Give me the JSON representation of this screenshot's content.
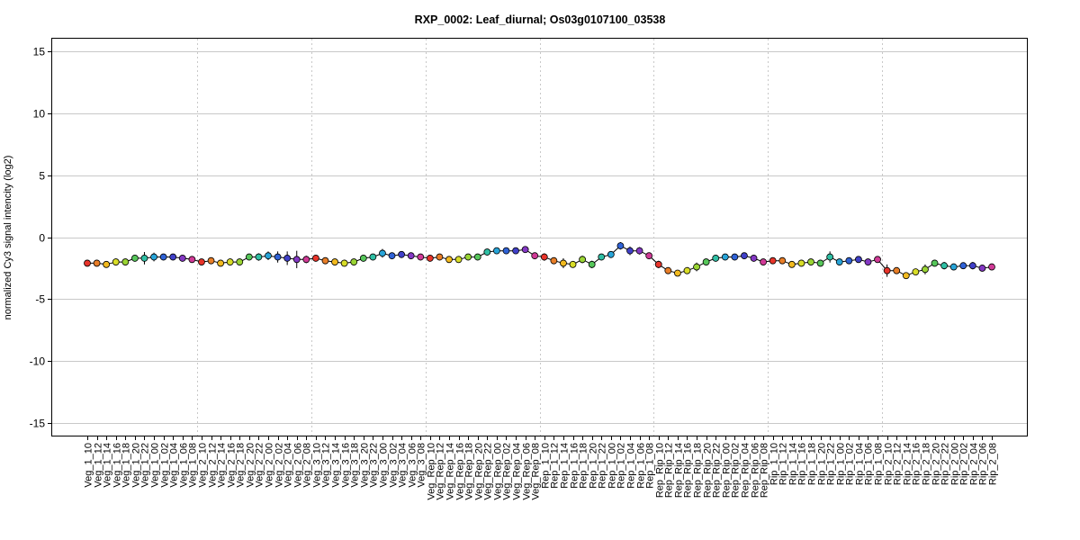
{
  "chart_data": {
    "type": "line",
    "title": "RXP_0002: Leaf_diurnal; Os03g0107100_03538",
    "xlabel": "",
    "ylabel": "normalized Cy3 signal intencity (log2)",
    "ylim": [
      -16,
      16
    ],
    "yticks": [
      15,
      10,
      5,
      0,
      -5,
      -10,
      -15
    ],
    "grid": true,
    "group_separators_after": [
      "Veg_1_08",
      "Veg_2_08",
      "Veg_3_08",
      "Veg_Rep_08",
      "Rep_1_08",
      "Rep_Rip_08",
      "Rip_1_08"
    ],
    "categories": [
      "Veg_1_10",
      "Veg_1_12",
      "Veg_1_14",
      "Veg_1_16",
      "Veg_1_18",
      "Veg_1_20",
      "Veg_1_22",
      "Veg_1_00",
      "Veg_1_02",
      "Veg_1_04",
      "Veg_1_06",
      "Veg_1_08",
      "Veg_2_10",
      "Veg_2_12",
      "Veg_2_14",
      "Veg_2_16",
      "Veg_2_18",
      "Veg_2_20",
      "Veg_2_22",
      "Veg_2_00",
      "Veg_2_02",
      "Veg_2_04",
      "Veg_2_06",
      "Veg_2_08",
      "Veg_3_10",
      "Veg_3_12",
      "Veg_3_14",
      "Veg_3_16",
      "Veg_3_18",
      "Veg_3_20",
      "Veg_3_22",
      "Veg_3_00",
      "Veg_3_02",
      "Veg_3_04",
      "Veg_3_06",
      "Veg_3_08",
      "Veg_Rep_10",
      "Veg_Rep_12",
      "Veg_Rep_14",
      "Veg_Rep_16",
      "Veg_Rep_18",
      "Veg_Rep_20",
      "Veg_Rep_22",
      "Veg_Rep_00",
      "Veg_Rep_02",
      "Veg_Rep_04",
      "Veg_Rep_06",
      "Veg_Rep_08",
      "Rep_1_10",
      "Rep_1_12",
      "Rep_1_14",
      "Rep_1_16",
      "Rep_1_18",
      "Rep_1_20",
      "Rep_1_22",
      "Rep_1_00",
      "Rep_1_02",
      "Rep_1_04",
      "Rep_1_06",
      "Rep_1_08",
      "Rep_Rip_10",
      "Rep_Rip_12",
      "Rep_Rip_14",
      "Rep_Rip_16",
      "Rep_Rip_18",
      "Rep_Rip_20",
      "Rep_Rip_22",
      "Rep_Rip_00",
      "Rep_Rip_02",
      "Rep_Rip_04",
      "Rep_Rip_06",
      "Rep_Rip_08",
      "Rip_1_10",
      "Rip_1_12",
      "Rip_1_14",
      "Rip_1_16",
      "Rip_1_18",
      "Rip_1_20",
      "Rip_1_22",
      "Rip_1_00",
      "Rip_1_02",
      "Rip_1_04",
      "Rip_1_06",
      "Rip_1_08",
      "Rip_2_10",
      "Rip_2_12",
      "Rip_2_14",
      "Rip_2_16",
      "Rip_2_18",
      "Rip_2_20",
      "Rip_2_22",
      "Rip_2_00",
      "Rip_2_02",
      "Rip_2_04",
      "Rip_2_06",
      "Rip_2_08"
    ],
    "values": [
      -2.1,
      -2.1,
      -2.2,
      -2.0,
      -2.0,
      -1.7,
      -1.7,
      -1.6,
      -1.6,
      -1.6,
      -1.7,
      -1.8,
      -2.0,
      -1.9,
      -2.1,
      -2.0,
      -2.0,
      -1.6,
      -1.6,
      -1.5,
      -1.6,
      -1.7,
      -1.8,
      -1.8,
      -1.7,
      -1.9,
      -2.0,
      -2.1,
      -2.0,
      -1.7,
      -1.6,
      -1.3,
      -1.5,
      -1.4,
      -1.5,
      -1.6,
      -1.7,
      -1.6,
      -1.8,
      -1.8,
      -1.6,
      -1.6,
      -1.2,
      -1.1,
      -1.1,
      -1.1,
      -1.0,
      -1.5,
      -1.6,
      -1.9,
      -2.1,
      -2.2,
      -1.8,
      -2.2,
      -1.6,
      -1.4,
      -0.7,
      -1.1,
      -1.1,
      -1.5,
      -2.2,
      -2.7,
      -2.9,
      -2.7,
      -2.4,
      -2.0,
      -1.7,
      -1.6,
      -1.6,
      -1.5,
      -1.7,
      -2.0,
      -1.9,
      -1.9,
      -2.2,
      -2.1,
      -2.0,
      -2.1,
      -1.6,
      -2.0,
      -1.9,
      -1.8,
      -2.0,
      -1.8,
      -2.7,
      -2.7,
      -3.1,
      -2.8,
      -2.6,
      -2.1,
      -2.3,
      -2.4,
      -2.3,
      -2.3,
      -2.5,
      -2.4
    ],
    "errors": [
      0.1,
      0.15,
      0.15,
      0.1,
      0.1,
      0.15,
      0.5,
      0.35,
      0.15,
      0.15,
      0.1,
      0.1,
      0.2,
      0.2,
      0.1,
      0.15,
      0.25,
      0.2,
      0.3,
      0.35,
      0.45,
      0.55,
      0.7,
      0.3,
      0.1,
      0.1,
      0.1,
      0.15,
      0.1,
      0.15,
      0.15,
      0.35,
      0.2,
      0.15,
      0.2,
      0.25,
      0.15,
      0.1,
      0.1,
      0.15,
      0.2,
      0.1,
      0.15,
      0.1,
      0.1,
      0.1,
      0.15,
      0.2,
      0.3,
      0.2,
      0.4,
      0.2,
      0.3,
      0.3,
      0.2,
      0.2,
      0.3,
      0.35,
      0.3,
      0.15,
      0.3,
      0.15,
      0.2,
      0.15,
      0.35,
      0.2,
      0.2,
      0.1,
      0.1,
      0.15,
      0.1,
      0.15,
      0.2,
      0.15,
      0.15,
      0.15,
      0.1,
      0.2,
      0.45,
      0.1,
      0.1,
      0.15,
      0.2,
      0.2,
      0.5,
      0.25,
      0.15,
      0.2,
      0.4,
      0.2,
      0.3,
      0.15,
      0.15,
      0.3,
      0.15,
      0.15
    ],
    "point_colors": [
      "#e8342a",
      "#e87e28",
      "#f2ba1f",
      "#d8dd28",
      "#9ad534",
      "#56c65a",
      "#2fbfa4",
      "#28a4d8",
      "#2f62d6",
      "#4040c8",
      "#8438c4",
      "#d03a96"
    ],
    "line_color": "#000000"
  }
}
